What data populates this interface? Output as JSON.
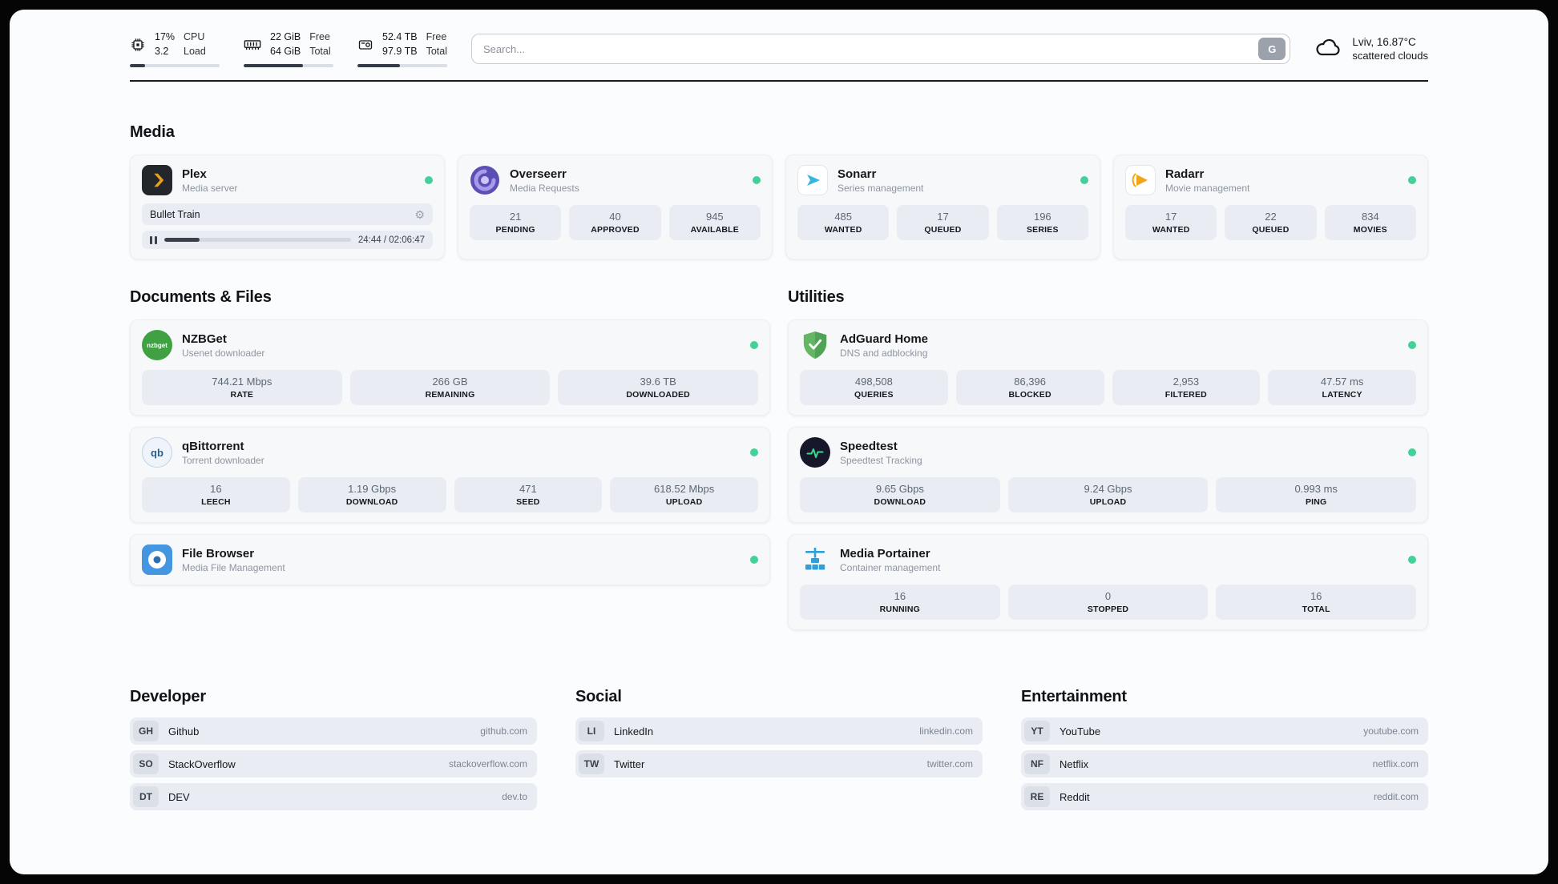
{
  "topbar": {
    "cpu": {
      "value_top": "17%",
      "value_bottom": "3.2",
      "label_top": "CPU",
      "label_bottom": "Load",
      "progress": 17
    },
    "ram": {
      "value_top": "22 GiB",
      "value_bottom": "64 GiB",
      "label_top": "Free",
      "label_bottom": "Total",
      "progress": 66
    },
    "disk": {
      "value_top": "52.4 TB",
      "value_bottom": "97.9 TB",
      "label_top": "Free",
      "label_bottom": "Total",
      "progress": 47
    },
    "search": {
      "placeholder": "Search...",
      "engine_label": "G"
    },
    "weather": {
      "location": "Lviv, 16.87°C",
      "condition": "scattered clouds"
    }
  },
  "sections": {
    "media": {
      "title": "Media",
      "plex": {
        "name": "Plex",
        "subtitle": "Media server",
        "now_playing": {
          "title": "Bullet Train",
          "time": "24:44 / 02:06:47",
          "progress": 19
        }
      },
      "overseerr": {
        "name": "Overseerr",
        "subtitle": "Media Requests",
        "stats": [
          {
            "value": "21",
            "label": "PENDING"
          },
          {
            "value": "40",
            "label": "APPROVED"
          },
          {
            "value": "945",
            "label": "AVAILABLE"
          }
        ]
      },
      "sonarr": {
        "name": "Sonarr",
        "subtitle": "Series management",
        "stats": [
          {
            "value": "485",
            "label": "WANTED"
          },
          {
            "value": "17",
            "label": "QUEUED"
          },
          {
            "value": "196",
            "label": "SERIES"
          }
        ]
      },
      "radarr": {
        "name": "Radarr",
        "subtitle": "Movie management",
        "stats": [
          {
            "value": "17",
            "label": "WANTED"
          },
          {
            "value": "22",
            "label": "QUEUED"
          },
          {
            "value": "834",
            "label": "MOVIES"
          }
        ]
      }
    },
    "documents": {
      "title": "Documents & Files",
      "nzbget": {
        "name": "NZBGet",
        "subtitle": "Usenet downloader",
        "icon_text": "nzbget",
        "stats": [
          {
            "value": "744.21 Mbps",
            "label": "RATE"
          },
          {
            "value": "266 GB",
            "label": "REMAINING"
          },
          {
            "value": "39.6 TB",
            "label": "DOWNLOADED"
          }
        ]
      },
      "qbittorrent": {
        "name": "qBittorrent",
        "subtitle": "Torrent downloader",
        "icon_text": "qb",
        "stats": [
          {
            "value": "16",
            "label": "LEECH"
          },
          {
            "value": "1.19 Gbps",
            "label": "DOWNLOAD"
          },
          {
            "value": "471",
            "label": "SEED"
          },
          {
            "value": "618.52 Mbps",
            "label": "UPLOAD"
          }
        ]
      },
      "filebrowser": {
        "name": "File Browser",
        "subtitle": "Media File Management"
      }
    },
    "utilities": {
      "title": "Utilities",
      "adguard": {
        "name": "AdGuard Home",
        "subtitle": "DNS and adblocking",
        "stats": [
          {
            "value": "498,508",
            "label": "QUERIES"
          },
          {
            "value": "86,396",
            "label": "BLOCKED"
          },
          {
            "value": "2,953",
            "label": "FILTERED"
          },
          {
            "value": "47.57 ms",
            "label": "LATENCY"
          }
        ]
      },
      "speedtest": {
        "name": "Speedtest",
        "subtitle": "Speedtest Tracking",
        "stats": [
          {
            "value": "9.65 Gbps",
            "label": "DOWNLOAD"
          },
          {
            "value": "9.24 Gbps",
            "label": "UPLOAD"
          },
          {
            "value": "0.993 ms",
            "label": "PING"
          }
        ]
      },
      "portainer": {
        "name": "Media Portainer",
        "subtitle": "Container management",
        "stats": [
          {
            "value": "16",
            "label": "RUNNING"
          },
          {
            "value": "0",
            "label": "STOPPED"
          },
          {
            "value": "16",
            "label": "TOTAL"
          }
        ]
      }
    }
  },
  "bookmarks": {
    "developer": {
      "title": "Developer",
      "items": [
        {
          "abbr": "GH",
          "name": "Github",
          "url": "github.com"
        },
        {
          "abbr": "SO",
          "name": "StackOverflow",
          "url": "stackoverflow.com"
        },
        {
          "abbr": "DT",
          "name": "DEV",
          "url": "dev.to"
        }
      ]
    },
    "social": {
      "title": "Social",
      "items": [
        {
          "abbr": "LI",
          "name": "LinkedIn",
          "url": "linkedin.com"
        },
        {
          "abbr": "TW",
          "name": "Twitter",
          "url": "twitter.com"
        }
      ]
    },
    "entertainment": {
      "title": "Entertainment",
      "items": [
        {
          "abbr": "YT",
          "name": "YouTube",
          "url": "youtube.com"
        },
        {
          "abbr": "NF",
          "name": "Netflix",
          "url": "netflix.com"
        },
        {
          "abbr": "RE",
          "name": "Reddit",
          "url": "reddit.com"
        }
      ]
    }
  },
  "colors": {
    "status_online": "#45d09a",
    "card_background": "#f7f8fa",
    "stat_box_background": "#e9edf3"
  }
}
